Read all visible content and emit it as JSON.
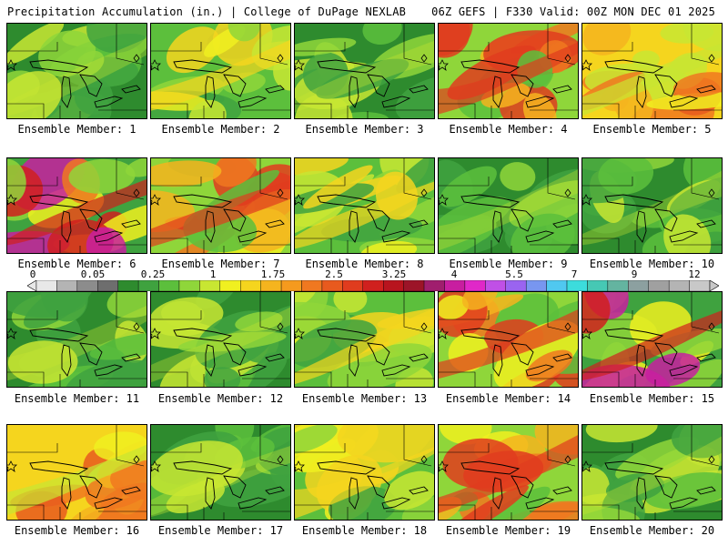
{
  "header": {
    "left_title": "Precipitation Accumulation (in.) | College of DuPage NEXLAB",
    "right_title": "06Z GEFS | F330 Valid: 00Z MON DEC 01 2025"
  },
  "colorbar": {
    "labels": [
      "0",
      "0.05",
      "0.25",
      "1",
      "1.75",
      "2.5",
      "3.25",
      "4",
      "5.5",
      "7",
      "9",
      "12"
    ],
    "colors": [
      "#e8e8e8",
      "#b4b4b4",
      "#8c8c8c",
      "#6e6e6e",
      "#2e8b2e",
      "#3fa23f",
      "#5cbf3c",
      "#8fd63a",
      "#c8e632",
      "#f0f020",
      "#f5d51e",
      "#f5b41e",
      "#f59a1e",
      "#f07820",
      "#e85a1e",
      "#e03c1e",
      "#d0201e",
      "#b8141e",
      "#9c1428",
      "#a01e6e",
      "#c81ea0",
      "#e028c8",
      "#c050e6",
      "#9a64f0",
      "#7896f0",
      "#50c8f0",
      "#3cdcdc",
      "#46c8b4",
      "#64b4a0",
      "#8ca0a0",
      "#a0a0a0",
      "#b4b4b4",
      "#c8c8c8"
    ]
  },
  "panels": [
    {
      "caption": "Ensemble Member: 1",
      "scheme": "green"
    },
    {
      "caption": "Ensemble Member: 2",
      "scheme": "mixed"
    },
    {
      "caption": "Ensemble Member: 3",
      "scheme": "green"
    },
    {
      "caption": "Ensemble Member: 4",
      "scheme": "wet"
    },
    {
      "caption": "Ensemble Member: 5",
      "scheme": "orange"
    },
    {
      "caption": "Ensemble Member: 6",
      "scheme": "heavy"
    },
    {
      "caption": "Ensemble Member: 7",
      "scheme": "wet"
    },
    {
      "caption": "Ensemble Member: 8",
      "scheme": "mixed"
    },
    {
      "caption": "Ensemble Member: 9",
      "scheme": "green"
    },
    {
      "caption": "Ensemble Member: 10",
      "scheme": "green"
    },
    {
      "caption": "Ensemble Member: 11",
      "scheme": "green"
    },
    {
      "caption": "Ensemble Member: 12",
      "scheme": "green"
    },
    {
      "caption": "Ensemble Member: 13",
      "scheme": "mixed"
    },
    {
      "caption": "Ensemble Member: 14",
      "scheme": "wet"
    },
    {
      "caption": "Ensemble Member: 15",
      "scheme": "heavy"
    },
    {
      "caption": "Ensemble Member: 16",
      "scheme": "orange"
    },
    {
      "caption": "Ensemble Member: 17",
      "scheme": "green"
    },
    {
      "caption": "Ensemble Member: 18",
      "scheme": "mixed"
    },
    {
      "caption": "Ensemble Member: 19",
      "scheme": "wet"
    },
    {
      "caption": "Ensemble Member: 20",
      "scheme": "green"
    }
  ]
}
